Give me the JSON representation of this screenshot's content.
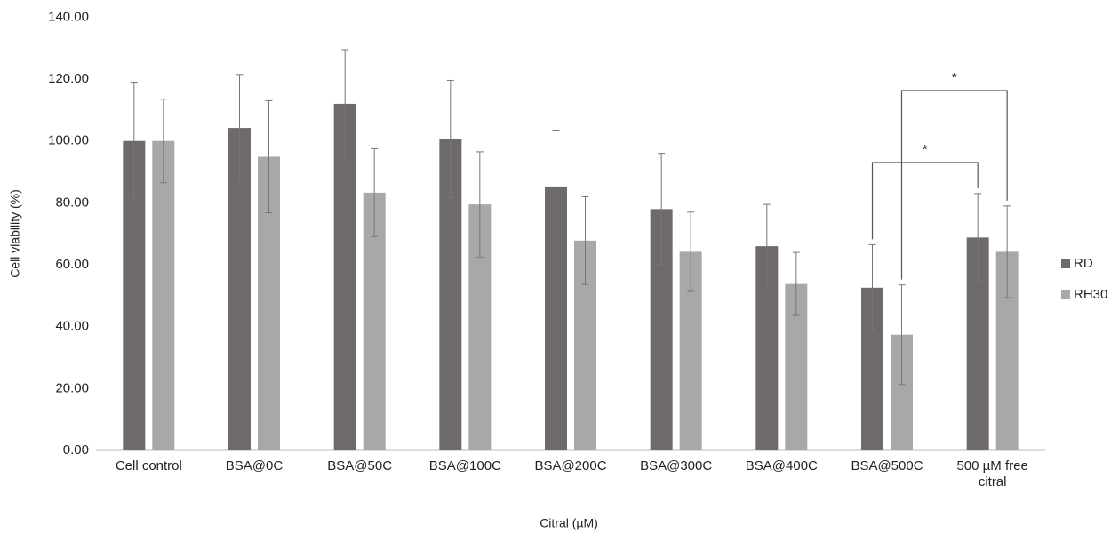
{
  "chart_data": {
    "type": "bar",
    "x_label": "Citral (µM)",
    "y_label": "Cell viability (%)",
    "categories": [
      "Cell control",
      "BSA@0C",
      "BSA@50C",
      "BSA@100C",
      "BSA@200C",
      "BSA@300C",
      "BSA@400C",
      "BSA@500C",
      "500 µM free citral"
    ],
    "series": [
      {
        "name": "RD",
        "color": "#6f6a6a",
        "values": [
          100,
          104.2,
          112,
          100.6,
          85.3,
          78,
          66,
          52.6,
          68.8
        ],
        "errors": [
          19,
          17.3,
          17.5,
          19,
          18.2,
          18,
          13.5,
          13.9,
          14.2
        ]
      },
      {
        "name": "RH30",
        "color": "#a9a7a7",
        "values": [
          100,
          94.9,
          83.3,
          79.5,
          67.8,
          64.2,
          53.8,
          37.4,
          64.2
        ],
        "errors": [
          13.5,
          18.1,
          14.2,
          17,
          14.2,
          12.8,
          10.2,
          16.1,
          14.8
        ]
      }
    ],
    "ylim": [
      0,
      140
    ],
    "yticks": [
      {
        "value": 0,
        "label": "0.00"
      },
      {
        "value": 20,
        "label": "20.00"
      },
      {
        "value": 40,
        "label": "40.00"
      },
      {
        "value": 60,
        "label": "60.00"
      },
      {
        "value": 80,
        "label": "80.00"
      },
      {
        "value": 100,
        "label": "100.00"
      },
      {
        "value": 120,
        "label": "120.00"
      },
      {
        "value": 140,
        "label": "140.00"
      }
    ],
    "grid": false,
    "legend": "right",
    "annotations": [
      "*",
      "*"
    ]
  }
}
